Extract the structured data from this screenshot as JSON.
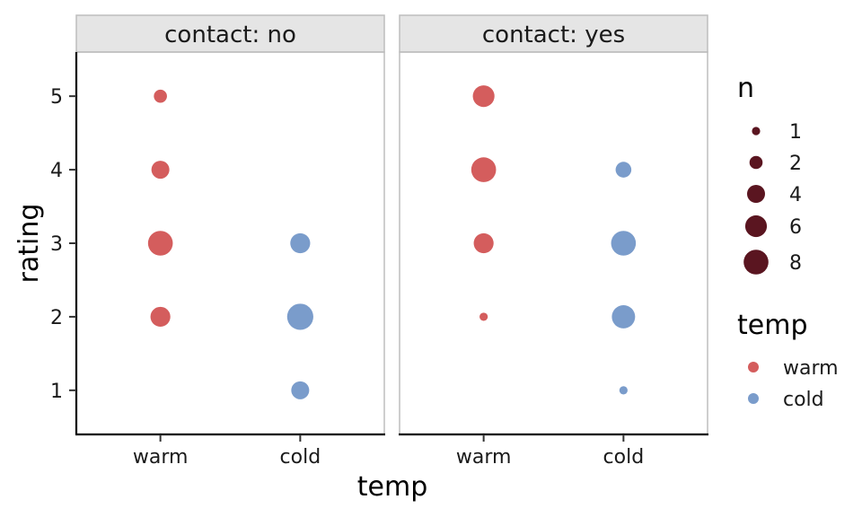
{
  "chart_data": {
    "type": "scatter",
    "xlabel": "temp",
    "ylabel": "rating",
    "x_categories": [
      "warm",
      "cold"
    ],
    "y_ticks": [
      1,
      2,
      3,
      4,
      5
    ],
    "ylim": [
      0.4,
      5.6
    ],
    "facet_label": "contact",
    "facets": [
      {
        "label": "contact: no",
        "points": [
          {
            "temp": "warm",
            "rating": 2,
            "n": 5
          },
          {
            "temp": "warm",
            "rating": 3,
            "n": 8
          },
          {
            "temp": "warm",
            "rating": 4,
            "n": 4
          },
          {
            "temp": "warm",
            "rating": 5,
            "n": 2
          },
          {
            "temp": "cold",
            "rating": 1,
            "n": 4
          },
          {
            "temp": "cold",
            "rating": 2,
            "n": 9
          },
          {
            "temp": "cold",
            "rating": 3,
            "n": 5
          }
        ]
      },
      {
        "label": "contact: yes",
        "points": [
          {
            "temp": "warm",
            "rating": 2,
            "n": 1
          },
          {
            "temp": "warm",
            "rating": 3,
            "n": 5
          },
          {
            "temp": "warm",
            "rating": 4,
            "n": 8
          },
          {
            "temp": "warm",
            "rating": 5,
            "n": 6
          },
          {
            "temp": "cold",
            "rating": 1,
            "n": 1
          },
          {
            "temp": "cold",
            "rating": 2,
            "n": 7
          },
          {
            "temp": "cold",
            "rating": 3,
            "n": 8
          },
          {
            "temp": "cold",
            "rating": 4,
            "n": 3
          }
        ]
      }
    ],
    "legend_size": {
      "title": "n",
      "entries": [
        1,
        2,
        4,
        6,
        8
      ]
    },
    "legend_color": {
      "title": "temp",
      "entries": [
        {
          "label": "warm",
          "color": "#d45d5d"
        },
        {
          "label": "cold",
          "color": "#7a9ccb"
        }
      ]
    },
    "size_legend_color": "#5a1520",
    "grid": false,
    "legend_position": "right"
  }
}
